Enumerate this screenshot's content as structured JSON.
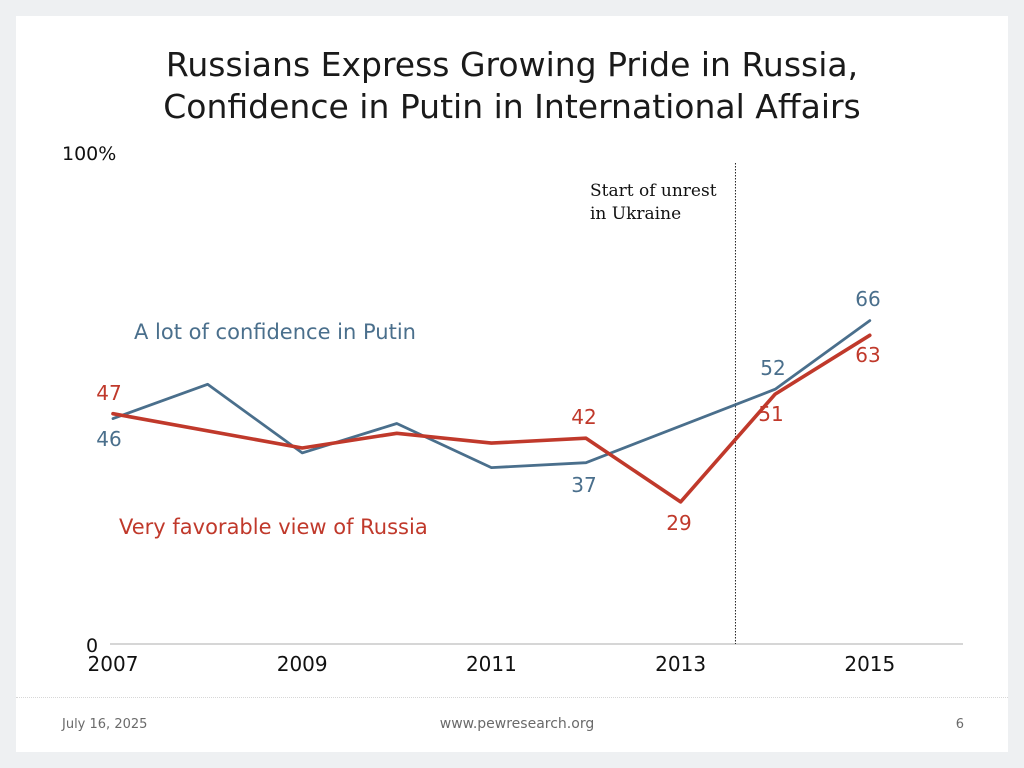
{
  "slide": {
    "title_line1": "Russians Express Growing Pride in Russia,",
    "title_line2": "Confidence in Putin in International Affairs"
  },
  "footer": {
    "date": "July 16, 2025",
    "url": "www.pewresearch.org",
    "page_number": "6"
  },
  "chart_data": {
    "type": "line",
    "title": "Russians Express Growing Pride in Russia, Confidence in Putin in International Affairs",
    "xlabel": "",
    "ylabel": "",
    "x_ticks": [
      "2007",
      "2009",
      "2011",
      "2013",
      "2015"
    ],
    "x_range": [
      2007,
      2016
    ],
    "y_ticks": [
      "0",
      "100%"
    ],
    "ylim": [
      0,
      100
    ],
    "grid": false,
    "series": [
      {
        "name": "A lot of confidence in Putin",
        "color": "#4a6f8c",
        "points": [
          {
            "x": 2007,
            "y": 46,
            "label": "46"
          },
          {
            "x": 2008,
            "y": 53
          },
          {
            "x": 2009,
            "y": 39
          },
          {
            "x": 2010,
            "y": 45
          },
          {
            "x": 2011,
            "y": 36
          },
          {
            "x": 2012,
            "y": 37,
            "label": "37"
          },
          {
            "x": 2014,
            "y": 52,
            "label": "52"
          },
          {
            "x": 2015,
            "y": 66,
            "label": "66"
          }
        ]
      },
      {
        "name": "Very favorable view of Russia",
        "color": "#c0392b",
        "points": [
          {
            "x": 2007,
            "y": 47,
            "label": "47"
          },
          {
            "x": 2009,
            "y": 40
          },
          {
            "x": 2010,
            "y": 43
          },
          {
            "x": 2011,
            "y": 41
          },
          {
            "x": 2012,
            "y": 42,
            "label": "42"
          },
          {
            "x": 2013,
            "y": 29,
            "label": "29"
          },
          {
            "x": 2014,
            "y": 51,
            "label": "51"
          },
          {
            "x": 2015,
            "y": 63,
            "label": "63"
          }
        ]
      }
    ],
    "annotations": [
      {
        "text_line1": "Start of unrest",
        "text_line2": "in Ukraine",
        "x": 2013.58
      }
    ]
  }
}
